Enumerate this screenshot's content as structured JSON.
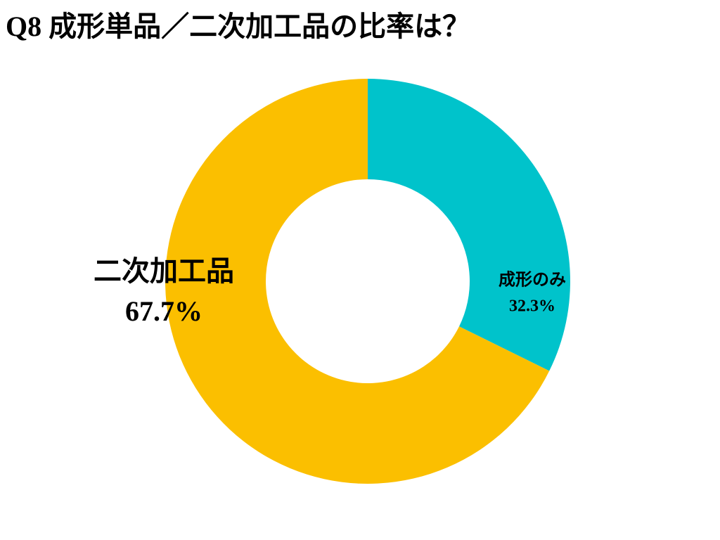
{
  "chart_data": {
    "type": "donut",
    "title": "Q8 成形単品／二次加工品の比率は？",
    "categories": [
      "成形のみ",
      "二次加工品"
    ],
    "values": [
      32.3,
      67.7
    ],
    "value_labels": [
      "32.3%",
      "67.7%"
    ],
    "colors": [
      "#00c3cb",
      "#fbbf00"
    ]
  }
}
